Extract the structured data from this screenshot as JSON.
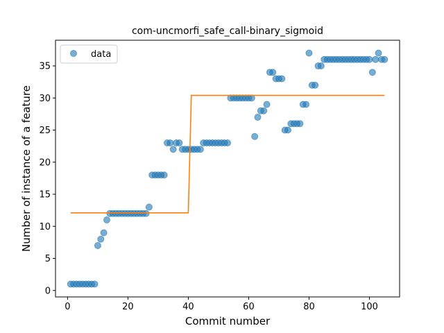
{
  "chart_data": {
    "type": "scatter",
    "title": "com-uncmorfi_safe_call-binary_sigmoid",
    "xlabel": "Commit number",
    "ylabel": "Number of instance of a feature",
    "xlim": [
      -4,
      110
    ],
    "ylim": [
      -1,
      39
    ],
    "xticks": [
      "0",
      "20",
      "40",
      "60",
      "80",
      "100"
    ],
    "yticks": [
      "0",
      "5",
      "10",
      "15",
      "20",
      "25",
      "30",
      "35"
    ],
    "grid": false,
    "legend_position": "upper-left",
    "colors": {
      "data": "#1f77b4",
      "fit": "#ff7f0e"
    },
    "series": [
      {
        "name": "data",
        "kind": "points",
        "x": [
          1,
          2,
          3,
          4,
          5,
          6,
          7,
          8,
          9,
          10,
          11,
          12,
          13,
          14,
          15,
          16,
          17,
          18,
          19,
          20,
          21,
          22,
          23,
          24,
          25,
          26,
          27,
          28,
          29,
          30,
          31,
          32,
          33,
          34,
          35,
          36,
          37,
          38,
          39,
          40,
          41,
          42,
          43,
          44,
          45,
          46,
          47,
          48,
          49,
          50,
          51,
          52,
          53,
          54,
          55,
          56,
          57,
          58,
          59,
          60,
          61,
          62,
          63,
          64,
          65,
          66,
          67,
          68,
          69,
          70,
          71,
          72,
          73,
          74,
          75,
          76,
          77,
          78,
          79,
          80,
          81,
          82,
          83,
          84,
          85,
          86,
          87,
          88,
          89,
          90,
          91,
          92,
          93,
          94,
          95,
          96,
          97,
          98,
          99,
          100,
          101,
          102,
          103,
          104,
          105
        ],
        "y": [
          1,
          1,
          1,
          1,
          1,
          1,
          1,
          1,
          1,
          7,
          8,
          9,
          11,
          12,
          12,
          12,
          12,
          12,
          12,
          12,
          12,
          12,
          12,
          12,
          12,
          12,
          13,
          18,
          18,
          18,
          18,
          18,
          23,
          23,
          22,
          23,
          23,
          22,
          22,
          22,
          22,
          22,
          22,
          22,
          23,
          23,
          23,
          23,
          23,
          23,
          23,
          23,
          23,
          30,
          30,
          30,
          30,
          30,
          30,
          30,
          30,
          24,
          27,
          28,
          28,
          29,
          34,
          34,
          33,
          33,
          33,
          25,
          25,
          26,
          26,
          26,
          26,
          29,
          29,
          37,
          32,
          32,
          35,
          35,
          36,
          36,
          36,
          36,
          36,
          36,
          36,
          36,
          36,
          36,
          36,
          36,
          36,
          36,
          36,
          36,
          34,
          36,
          37,
          36,
          36
        ]
      },
      {
        "name": "",
        "kind": "line",
        "x": [
          1,
          40,
          41,
          105
        ],
        "y": [
          12.1,
          12.1,
          30.4,
          30.4
        ]
      }
    ]
  }
}
